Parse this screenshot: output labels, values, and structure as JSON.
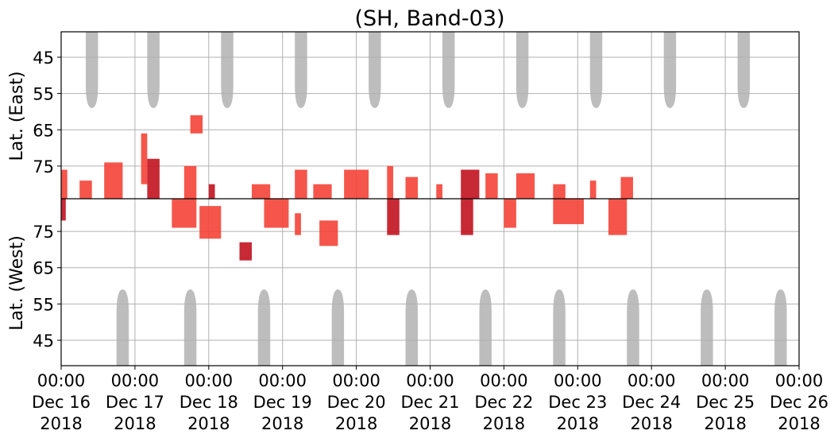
{
  "chart_data": {
    "type": "heatmap",
    "title": "(SH, Band-03)",
    "xlabel": "",
    "ylabel_top": "Lat. (East)",
    "ylabel_bottom": "Lat. (West)",
    "x_ticks": [
      {
        "date": "2018-12-16",
        "time": "00:00",
        "line1": "Dec 16",
        "line2": "2018"
      },
      {
        "date": "2018-12-17",
        "time": "00:00",
        "line1": "Dec 17",
        "line2": "2018"
      },
      {
        "date": "2018-12-18",
        "time": "00:00",
        "line1": "Dec 18",
        "line2": "2018"
      },
      {
        "date": "2018-12-19",
        "time": "00:00",
        "line1": "Dec 19",
        "line2": "2018"
      },
      {
        "date": "2018-12-20",
        "time": "00:00",
        "line1": "Dec 20",
        "line2": "2018"
      },
      {
        "date": "2018-12-21",
        "time": "00:00",
        "line1": "Dec 21",
        "line2": "2018"
      },
      {
        "date": "2018-12-22",
        "time": "00:00",
        "line1": "Dec 22",
        "line2": "2018"
      },
      {
        "date": "2018-12-23",
        "time": "00:00",
        "line1": "Dec 23",
        "line2": "2018"
      },
      {
        "date": "2018-12-24",
        "time": "00:00",
        "line1": "Dec 24",
        "line2": "2018"
      },
      {
        "date": "2018-12-25",
        "time": "00:00",
        "line1": "Dec 25",
        "line2": "2018"
      },
      {
        "date": "2018-12-26",
        "time": "00:00",
        "line1": "Dec 26",
        "line2": "2018"
      }
    ],
    "xlim": [
      "2018-12-16 00:00",
      "2018-12-26 00:00"
    ],
    "y_ticks_east": [
      {
        "lat": 45,
        "label": "45"
      },
      {
        "lat": 55,
        "label": "55"
      },
      {
        "lat": 65,
        "label": "65"
      },
      {
        "lat": 75,
        "label": "75"
      }
    ],
    "y_ticks_west": [
      {
        "lat": 75,
        "label": "75"
      },
      {
        "lat": 65,
        "label": "65"
      },
      {
        "lat": 55,
        "label": "55"
      },
      {
        "lat": 45,
        "label": "45"
      }
    ],
    "ylim_east": [
      38,
      84
    ],
    "ylim_west": [
      38,
      84
    ],
    "center_line_lat": 84,
    "grid": true,
    "colors": {
      "activity": "#f44336",
      "activity_strong": "#c1121f",
      "no_coverage": "#bdbdbd",
      "grid": "#b0b0b0",
      "center_line": "#000000"
    },
    "no_coverage_east": [
      {
        "center": "2018-12-16 10:00",
        "lat_min": 59,
        "width_h": 4.0
      },
      {
        "center": "2018-12-17 06:00",
        "lat_min": 59,
        "width_h": 4.0
      },
      {
        "center": "2018-12-18 06:00",
        "lat_min": 59,
        "width_h": 4.0
      },
      {
        "center": "2018-12-19 06:00",
        "lat_min": 59,
        "width_h": 4.0
      },
      {
        "center": "2018-12-20 06:00",
        "lat_min": 59,
        "width_h": 4.0
      },
      {
        "center": "2018-12-21 06:00",
        "lat_min": 59,
        "width_h": 4.0
      },
      {
        "center": "2018-12-22 06:00",
        "lat_min": 59,
        "width_h": 4.0
      },
      {
        "center": "2018-12-23 06:00",
        "lat_min": 59,
        "width_h": 4.0
      },
      {
        "center": "2018-12-24 06:00",
        "lat_min": 59,
        "width_h": 4.0
      },
      {
        "center": "2018-12-25 06:00",
        "lat_min": 59,
        "width_h": 4.0
      }
    ],
    "no_coverage_west": [
      {
        "center": "2018-12-16 20:00",
        "lat_min": 59,
        "width_h": 4.0
      },
      {
        "center": "2018-12-17 18:00",
        "lat_min": 59,
        "width_h": 4.0
      },
      {
        "center": "2018-12-18 18:00",
        "lat_min": 59,
        "width_h": 4.0
      },
      {
        "center": "2018-12-19 18:00",
        "lat_min": 59,
        "width_h": 4.0
      },
      {
        "center": "2018-12-20 18:00",
        "lat_min": 59,
        "width_h": 4.0
      },
      {
        "center": "2018-12-21 18:00",
        "lat_min": 59,
        "width_h": 4.0
      },
      {
        "center": "2018-12-22 18:00",
        "lat_min": 59,
        "width_h": 4.0
      },
      {
        "center": "2018-12-23 18:00",
        "lat_min": 59,
        "width_h": 4.0
      },
      {
        "center": "2018-12-24 18:00",
        "lat_min": 59,
        "width_h": 4.0
      },
      {
        "center": "2018-12-25 18:00",
        "lat_min": 59,
        "width_h": 4.0
      }
    ],
    "activity_patches": [
      {
        "hemi": "east",
        "start": "2018-12-16 00:00",
        "end": "2018-12-16 02:00",
        "lat_min": 76,
        "lat_max": 84,
        "level": 1
      },
      {
        "hemi": "west",
        "start": "2018-12-16 00:00",
        "end": "2018-12-16 01:30",
        "lat_min": 78,
        "lat_max": 84,
        "level": 2
      },
      {
        "hemi": "east",
        "start": "2018-12-16 06:00",
        "end": "2018-12-16 10:00",
        "lat_min": 79,
        "lat_max": 84,
        "level": 1
      },
      {
        "hemi": "east",
        "start": "2018-12-16 14:00",
        "end": "2018-12-16 20:00",
        "lat_min": 74,
        "lat_max": 84,
        "level": 1
      },
      {
        "hemi": "east",
        "start": "2018-12-17 02:00",
        "end": "2018-12-17 04:00",
        "lat_min": 66,
        "lat_max": 80,
        "level": 1
      },
      {
        "hemi": "east",
        "start": "2018-12-17 04:00",
        "end": "2018-12-17 08:00",
        "lat_min": 73,
        "lat_max": 84,
        "level": 2
      },
      {
        "hemi": "west",
        "start": "2018-12-17 12:00",
        "end": "2018-12-17 20:00",
        "lat_min": 76,
        "lat_max": 84,
        "level": 1
      },
      {
        "hemi": "east",
        "start": "2018-12-17 16:00",
        "end": "2018-12-17 20:00",
        "lat_min": 75,
        "lat_max": 84,
        "level": 1
      },
      {
        "hemi": "east",
        "start": "2018-12-17 18:00",
        "end": "2018-12-17 22:00",
        "lat_min": 61,
        "lat_max": 66,
        "level": 1
      },
      {
        "hemi": "west",
        "start": "2018-12-17 21:00",
        "end": "2018-12-18 04:00",
        "lat_min": 73,
        "lat_max": 82,
        "level": 1
      },
      {
        "hemi": "east",
        "start": "2018-12-18 00:00",
        "end": "2018-12-18 02:00",
        "lat_min": 80,
        "lat_max": 84,
        "level": 2
      },
      {
        "hemi": "west",
        "start": "2018-12-18 10:00",
        "end": "2018-12-18 14:00",
        "lat_min": 67,
        "lat_max": 72,
        "level": 2
      },
      {
        "hemi": "east",
        "start": "2018-12-18 14:00",
        "end": "2018-12-18 20:00",
        "lat_min": 80,
        "lat_max": 84,
        "level": 1
      },
      {
        "hemi": "west",
        "start": "2018-12-18 18:00",
        "end": "2018-12-19 02:00",
        "lat_min": 76,
        "lat_max": 84,
        "level": 1
      },
      {
        "hemi": "east",
        "start": "2018-12-19 04:00",
        "end": "2018-12-19 08:00",
        "lat_min": 76,
        "lat_max": 84,
        "level": 1
      },
      {
        "hemi": "west",
        "start": "2018-12-19 04:00",
        "end": "2018-12-19 06:00",
        "lat_min": 74,
        "lat_max": 80,
        "level": 1
      },
      {
        "hemi": "east",
        "start": "2018-12-19 10:00",
        "end": "2018-12-19 16:00",
        "lat_min": 80,
        "lat_max": 84,
        "level": 1
      },
      {
        "hemi": "west",
        "start": "2018-12-19 12:00",
        "end": "2018-12-19 18:00",
        "lat_min": 71,
        "lat_max": 78,
        "level": 1
      },
      {
        "hemi": "east",
        "start": "2018-12-19 20:00",
        "end": "2018-12-20 04:00",
        "lat_min": 76,
        "lat_max": 84,
        "level": 1
      },
      {
        "hemi": "east",
        "start": "2018-12-20 10:00",
        "end": "2018-12-20 12:00",
        "lat_min": 75,
        "lat_max": 84,
        "level": 1
      },
      {
        "hemi": "west",
        "start": "2018-12-20 10:00",
        "end": "2018-12-20 14:00",
        "lat_min": 74,
        "lat_max": 84,
        "level": 2
      },
      {
        "hemi": "east",
        "start": "2018-12-20 16:00",
        "end": "2018-12-20 20:00",
        "lat_min": 78,
        "lat_max": 84,
        "level": 1
      },
      {
        "hemi": "east",
        "start": "2018-12-21 02:00",
        "end": "2018-12-21 04:00",
        "lat_min": 80,
        "lat_max": 84,
        "level": 1
      },
      {
        "hemi": "east",
        "start": "2018-12-21 10:00",
        "end": "2018-12-21 16:00",
        "lat_min": 76,
        "lat_max": 84,
        "level": 2
      },
      {
        "hemi": "west",
        "start": "2018-12-21 10:00",
        "end": "2018-12-21 14:00",
        "lat_min": 74,
        "lat_max": 84,
        "level": 2
      },
      {
        "hemi": "east",
        "start": "2018-12-21 18:00",
        "end": "2018-12-21 22:00",
        "lat_min": 77,
        "lat_max": 84,
        "level": 1
      },
      {
        "hemi": "west",
        "start": "2018-12-22 00:00",
        "end": "2018-12-22 04:00",
        "lat_min": 76,
        "lat_max": 84,
        "level": 1
      },
      {
        "hemi": "east",
        "start": "2018-12-22 04:00",
        "end": "2018-12-22 10:00",
        "lat_min": 77,
        "lat_max": 84,
        "level": 1
      },
      {
        "hemi": "east",
        "start": "2018-12-22 16:00",
        "end": "2018-12-22 20:00",
        "lat_min": 80,
        "lat_max": 84,
        "level": 1
      },
      {
        "hemi": "west",
        "start": "2018-12-22 16:00",
        "end": "2018-12-23 02:00",
        "lat_min": 77,
        "lat_max": 84,
        "level": 1
      },
      {
        "hemi": "east",
        "start": "2018-12-23 04:00",
        "end": "2018-12-23 06:00",
        "lat_min": 79,
        "lat_max": 84,
        "level": 1
      },
      {
        "hemi": "west",
        "start": "2018-12-23 10:00",
        "end": "2018-12-23 16:00",
        "lat_min": 74,
        "lat_max": 84,
        "level": 1
      },
      {
        "hemi": "east",
        "start": "2018-12-23 14:00",
        "end": "2018-12-23 18:00",
        "lat_min": 78,
        "lat_max": 84,
        "level": 1
      }
    ]
  }
}
